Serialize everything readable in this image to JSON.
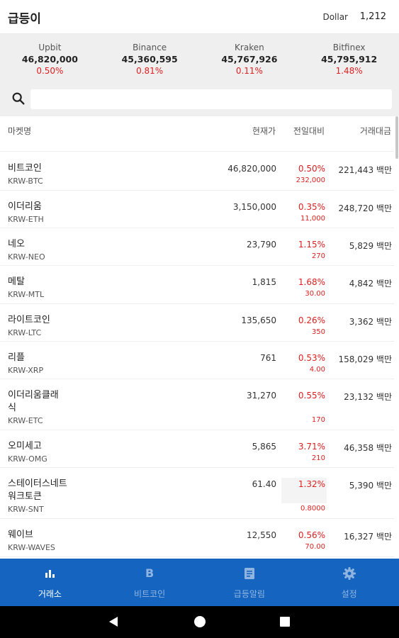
{
  "header": {
    "title": "급등이",
    "dollar_label": "Dollar",
    "dollar_value": "1,212"
  },
  "exchanges": [
    {
      "name": "Upbit",
      "price": "46,820,000",
      "change": "0.50%"
    },
    {
      "name": "Binance",
      "price": "45,360,595",
      "change": "0.81%"
    },
    {
      "name": "Kraken",
      "price": "45,767,926",
      "change": "0.11%"
    },
    {
      "name": "Bitfinex",
      "price": "45,795,912",
      "change": "1.48%"
    }
  ],
  "search": {
    "value": "",
    "icon": "search-icon"
  },
  "columns": {
    "market": "마켓명",
    "price": "현재가",
    "change": "전일대비",
    "volume": "거래대금"
  },
  "rows": [
    {
      "name": "비트코인",
      "code": "KRW-BTC",
      "price": "46,820,000",
      "change": "0.50%",
      "diff": "232,000",
      "volume": "221,443 백만"
    },
    {
      "name": "이더리움",
      "code": "KRW-ETH",
      "price": "3,150,000",
      "change": "0.35%",
      "diff": "11,000",
      "volume": "248,720 백만"
    },
    {
      "name": "네오",
      "code": "KRW-NEO",
      "price": "23,790",
      "change": "1.15%",
      "diff": "270",
      "volume": "5,829 백만"
    },
    {
      "name": "메탈",
      "code": "KRW-MTL",
      "price": "1,815",
      "change": "1.68%",
      "diff": "30.00",
      "volume": "4,842 백만"
    },
    {
      "name": "라이트코인",
      "code": "KRW-LTC",
      "price": "135,650",
      "change": "0.26%",
      "diff": "350",
      "volume": "3,362 백만"
    },
    {
      "name": "리플",
      "code": "KRW-XRP",
      "price": "761",
      "change": "0.53%",
      "diff": "4.00",
      "volume": "158,029 백만"
    },
    {
      "name": "이더리움클래식",
      "code": "KRW-ETC",
      "price": "31,270",
      "change": "0.55%",
      "diff": "170",
      "volume": "23,132 백만"
    },
    {
      "name": "오미세고",
      "code": "KRW-OMG",
      "price": "5,865",
      "change": "3.71%",
      "diff": "210",
      "volume": "46,358 백만"
    },
    {
      "name": "스테이터스네트워크토큰",
      "code": "KRW-SNT",
      "price": "61.40",
      "change": "1.32%",
      "diff": "0.8000",
      "volume": "5,390 백만"
    },
    {
      "name": "웨이브",
      "code": "KRW-WAVES",
      "price": "12,550",
      "change": "0.56%",
      "diff": "70.00",
      "volume": "16,327 백만"
    }
  ],
  "bottom_nav": [
    {
      "label": "거래소",
      "icon": "bar-chart-icon",
      "active": true
    },
    {
      "label": "비트코인",
      "icon": "bitcoin-b-icon",
      "active": false
    },
    {
      "label": "급등알림",
      "icon": "notice-icon",
      "active": false
    },
    {
      "label": "설정",
      "icon": "gear-icon",
      "active": false
    }
  ],
  "colors": {
    "primary": "#1565c0",
    "up": "#e02020",
    "panel": "#efefef"
  }
}
